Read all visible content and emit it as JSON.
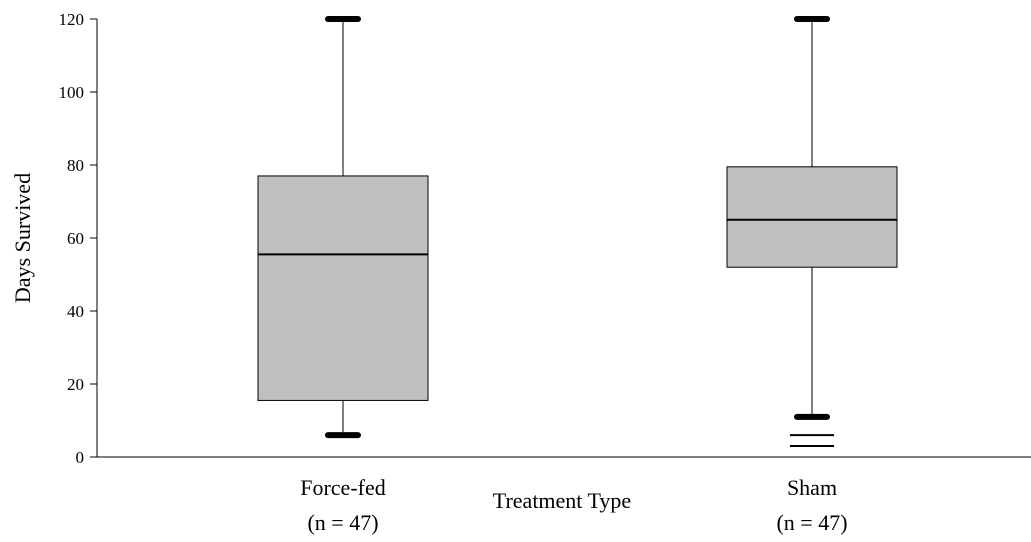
{
  "chart_data": {
    "type": "box",
    "ylabel": "Days Survived",
    "xlabel": "Treatment Type",
    "ylim": [
      0,
      120
    ],
    "yticks": [
      0,
      20,
      40,
      60,
      80,
      100,
      120
    ],
    "grid": false,
    "box_fill": "#c0c0c0",
    "box_stroke": "#000000",
    "boxes": [
      {
        "category": "Force-fed",
        "n_label": "(n = 47)",
        "whisker_low": 6,
        "q1": 15.5,
        "median": 55.5,
        "q3": 77,
        "whisker_high": 120,
        "outliers": []
      },
      {
        "category": "Sham",
        "n_label": "(n = 47)",
        "whisker_low": 11,
        "q1": 52,
        "median": 65,
        "q3": 79.5,
        "whisker_high": 120,
        "outliers": [
          6,
          3
        ]
      }
    ]
  }
}
